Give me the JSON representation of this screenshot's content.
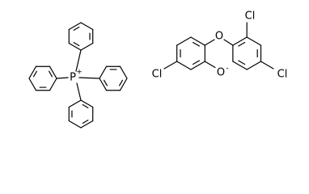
{
  "cation": {
    "atom": "P",
    "charge": "+"
  },
  "anion": {
    "bridge_oxygen": "O",
    "oxide": "O",
    "charge": "-",
    "chlorines": [
      "Cl",
      "Cl",
      "Cl"
    ]
  }
}
